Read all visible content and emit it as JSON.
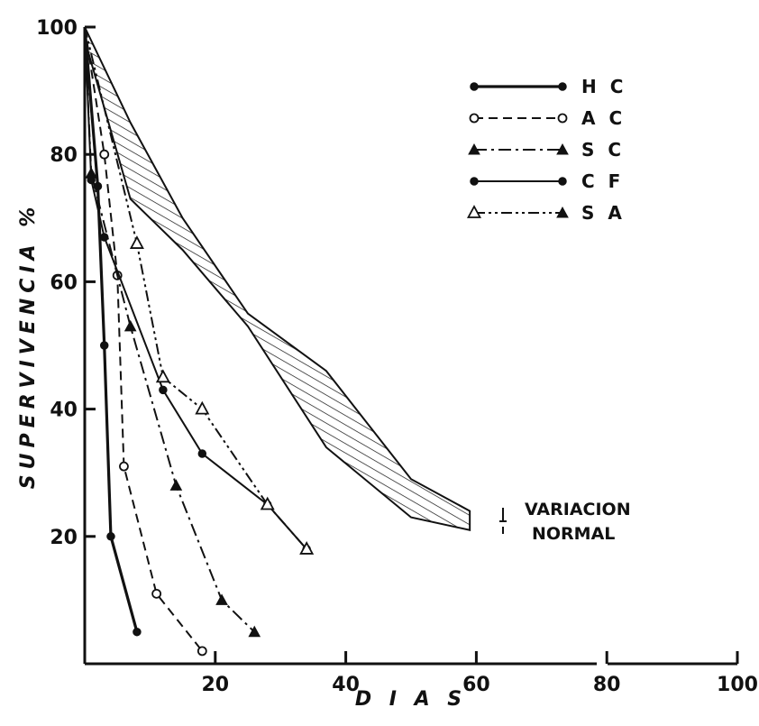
{
  "chart_data": {
    "type": "line",
    "xlabel": "D I A S",
    "ylabel": "SUPERVIVENCIA %",
    "xlim": [
      0,
      100
    ],
    "ylim": [
      0,
      100
    ],
    "x_ticks": [
      "20",
      "40",
      "60",
      "80",
      "100"
    ],
    "y_ticks": [
      "20",
      "40",
      "60",
      "80",
      "100"
    ],
    "legend_position": "top-right",
    "series": [
      {
        "name": "H C",
        "style": "solid-filled-circle",
        "x": [
          0,
          2,
          3,
          4,
          8
        ],
        "y": [
          100,
          75,
          50,
          20,
          5
        ]
      },
      {
        "name": "A C",
        "style": "dashed-open-circle",
        "x": [
          0,
          3,
          5,
          6,
          11,
          18
        ],
        "y": [
          100,
          80,
          61,
          31,
          11,
          2
        ]
      },
      {
        "name": "S C",
        "style": "dashdot-filled-triangle",
        "x": [
          0,
          1,
          7,
          14,
          21,
          26
        ],
        "y": [
          100,
          77,
          53,
          28,
          10,
          5
        ]
      },
      {
        "name": "C F",
        "style": "solid-filled-circle",
        "x": [
          0,
          1,
          3,
          12,
          18,
          28,
          34
        ],
        "y": [
          100,
          76,
          67,
          43,
          33,
          25,
          18
        ]
      },
      {
        "name": "S A",
        "style": "dashdotdot-open-triangle",
        "x": [
          0,
          8,
          12,
          18,
          28,
          34
        ],
        "y": [
          100,
          66,
          45,
          40,
          25,
          18
        ]
      }
    ],
    "normal_band": {
      "label": "VARIACION NORMAL",
      "x": [
        0,
        7,
        15,
        25,
        37,
        50,
        59
      ],
      "upper": [
        100,
        85,
        70,
        55,
        46,
        29,
        24
      ],
      "lower": [
        98,
        73,
        65,
        53,
        34,
        23,
        21
      ]
    },
    "legend": [
      {
        "label": "H C",
        "marker": "filled-circle",
        "dash": "solid"
      },
      {
        "label": "A C",
        "marker": "open-circle",
        "dash": "dashed"
      },
      {
        "label": "S C",
        "marker": "filled-triangle",
        "dash": "dashdot"
      },
      {
        "label": "C F",
        "marker": "filled-circle",
        "dash": "solid-thin"
      },
      {
        "label": "S A",
        "marker": "open-triangle",
        "dash": "dashdotdot"
      }
    ]
  }
}
